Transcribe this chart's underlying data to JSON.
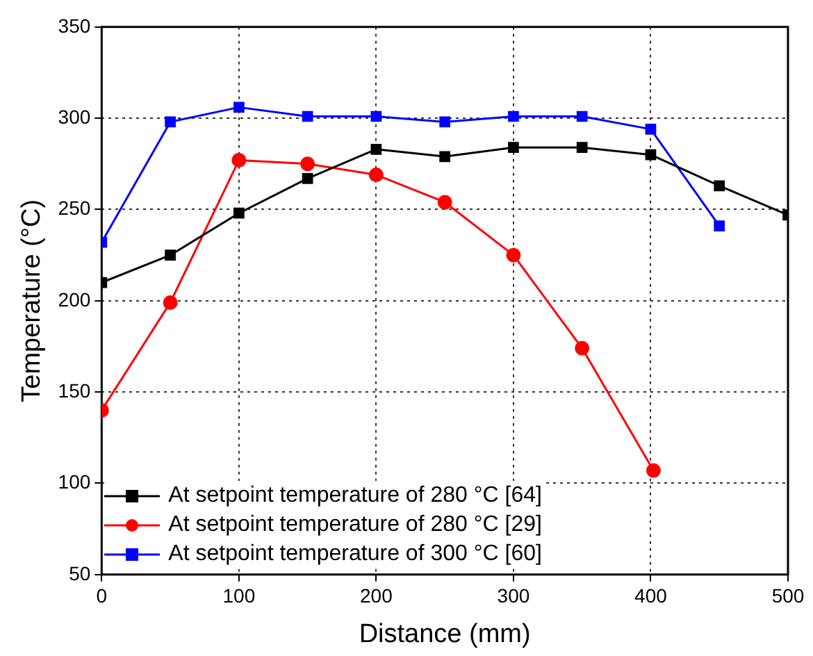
{
  "chart_data": {
    "type": "line",
    "xlabel": "Distance (mm)",
    "ylabel": "Temperature (°C)",
    "xlim": [
      0,
      500
    ],
    "xticks": [
      0,
      100,
      200,
      300,
      400,
      500
    ],
    "ylim": [
      50,
      350
    ],
    "yticks": [
      50,
      100,
      150,
      200,
      250,
      300,
      350
    ],
    "grid": true,
    "legend": "bottom left",
    "line_style": "solid",
    "series": [
      {
        "name": "At setpoint temperature of 280 °C [64]",
        "color": "#000000",
        "marker": "square",
        "x": [
          0,
          50,
          100,
          150,
          200,
          250,
          300,
          350,
          400,
          450,
          500
        ],
        "values": [
          210,
          225,
          248,
          267,
          283,
          279,
          284,
          284,
          280,
          263,
          247
        ]
      },
      {
        "name": "At setpoint temperature of 280 °C [29]",
        "color": "#ff0000",
        "marker": "circle",
        "x": [
          0,
          50,
          100,
          150,
          200,
          250,
          300,
          350,
          402
        ],
        "values": [
          140,
          199,
          277,
          275,
          269,
          254,
          225,
          174,
          107
        ]
      },
      {
        "name": "At setpoint temperature of 300 °C [60]",
        "color": "#0000ff",
        "marker": "square",
        "x": [
          0,
          50,
          100,
          150,
          200,
          250,
          300,
          350,
          400,
          450
        ],
        "values": [
          232,
          298,
          306,
          301,
          301,
          298,
          301,
          301,
          294,
          241
        ]
      }
    ]
  }
}
